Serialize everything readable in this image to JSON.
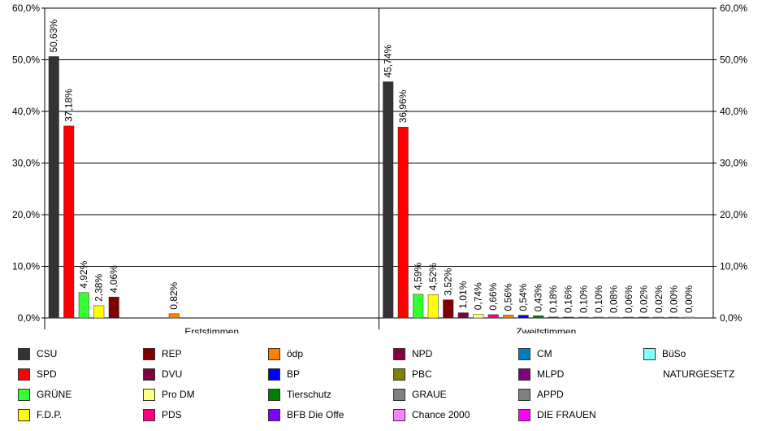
{
  "chart_data": {
    "type": "bar",
    "ylim": [
      0,
      60
    ],
    "y_ticks": [
      "0,0%",
      "10,0%",
      "20,0%",
      "30,0%",
      "40,0%",
      "50,0%",
      "60,0%"
    ],
    "y_axis_both_sides": true,
    "grid": true,
    "legend_position": "bottom",
    "groups": [
      {
        "label": "Erststimmen",
        "bars": [
          {
            "party": "CSU",
            "value": 50.63,
            "label": "50,63%"
          },
          {
            "party": "SPD",
            "value": 37.18,
            "label": "37,18%"
          },
          {
            "party": "GRÜNE",
            "value": 4.92,
            "label": "4,92%"
          },
          {
            "party": "F.D.P.",
            "value": 2.38,
            "label": "2,38%"
          },
          {
            "party": "REP",
            "value": 4.06,
            "label": "4,06%"
          },
          {
            "party": "DVU",
            "value": null,
            "label": ""
          },
          {
            "party": "Pro DM",
            "value": null,
            "label": ""
          },
          {
            "party": "PDS",
            "value": null,
            "label": ""
          },
          {
            "party": "ödp",
            "value": 0.82,
            "label": "0,82%"
          }
        ]
      },
      {
        "label": "Zweitstimmen",
        "bars": [
          {
            "party": "CSU",
            "value": 45.74,
            "label": "45,74%"
          },
          {
            "party": "SPD",
            "value": 36.96,
            "label": "36,96%"
          },
          {
            "party": "GRÜNE",
            "value": 4.59,
            "label": "4,59%"
          },
          {
            "party": "F.D.P.",
            "value": 4.52,
            "label": "4,52%"
          },
          {
            "party": "REP",
            "value": 3.52,
            "label": "3,52%"
          },
          {
            "party": "DVU",
            "value": 1.01,
            "label": "1,01%"
          },
          {
            "party": "Pro DM",
            "value": 0.74,
            "label": "0,74%"
          },
          {
            "party": "PDS",
            "value": 0.66,
            "label": "0,66%"
          },
          {
            "party": "ödp",
            "value": 0.56,
            "label": "0,56%"
          },
          {
            "party": "BP",
            "value": 0.54,
            "label": "0,54%"
          },
          {
            "party": "Tierschutz",
            "value": 0.43,
            "label": "0,43%"
          },
          {
            "party": "BFB Die Offe",
            "value": 0.18,
            "label": "0,18%"
          },
          {
            "party": "NPD",
            "value": 0.16,
            "label": "0,16%"
          },
          {
            "party": "PBC",
            "value": 0.1,
            "label": "0,10%"
          },
          {
            "party": "GRAUE",
            "value": 0.1,
            "label": "0,10%"
          },
          {
            "party": "Chance 2000",
            "value": 0.08,
            "label": "0,08%"
          },
          {
            "party": "CM",
            "value": 0.06,
            "label": "0,06%"
          },
          {
            "party": "MLPD",
            "value": 0.02,
            "label": "0,02%"
          },
          {
            "party": "APPD",
            "value": 0.02,
            "label": "0,02%"
          },
          {
            "party": "DIE FRAUEN",
            "value": 0.0,
            "label": "0,00%"
          },
          {
            "party": "BüSo",
            "value": 0.0,
            "label": "0,00%"
          }
        ]
      }
    ]
  },
  "legend": [
    {
      "name": "CSU",
      "color": "#333333"
    },
    {
      "name": "SPD",
      "color": "#ff0000"
    },
    {
      "name": "GRÜNE",
      "color": "#33ff33"
    },
    {
      "name": "F.D.P.",
      "color": "#ffff00"
    },
    {
      "name": "REP",
      "color": "#800000"
    },
    {
      "name": "DVU",
      "color": "#800040"
    },
    {
      "name": "Pro DM",
      "color": "#ffff80"
    },
    {
      "name": "PDS",
      "color": "#ff0080"
    },
    {
      "name": "ödp",
      "color": "#ff8000"
    },
    {
      "name": "BP",
      "color": "#0000ff"
    },
    {
      "name": "Tierschutz",
      "color": "#008000"
    },
    {
      "name": "BFB Die Offe",
      "color": "#8000ff"
    },
    {
      "name": "NPD",
      "color": "#800040"
    },
    {
      "name": "PBC",
      "color": "#808000"
    },
    {
      "name": "GRAUE",
      "color": "#808080"
    },
    {
      "name": "Chance 2000",
      "color": "#ff80ff"
    },
    {
      "name": "CM",
      "color": "#0080c0"
    },
    {
      "name": "MLPD",
      "color": "#800080"
    },
    {
      "name": "APPD",
      "color": "#808080"
    },
    {
      "name": "DIE FRAUEN",
      "color": "#ff00ff"
    },
    {
      "name": "BüSo",
      "color": "#80ffff"
    },
    {
      "name": "NATURGESETZ",
      "color": ""
    }
  ]
}
